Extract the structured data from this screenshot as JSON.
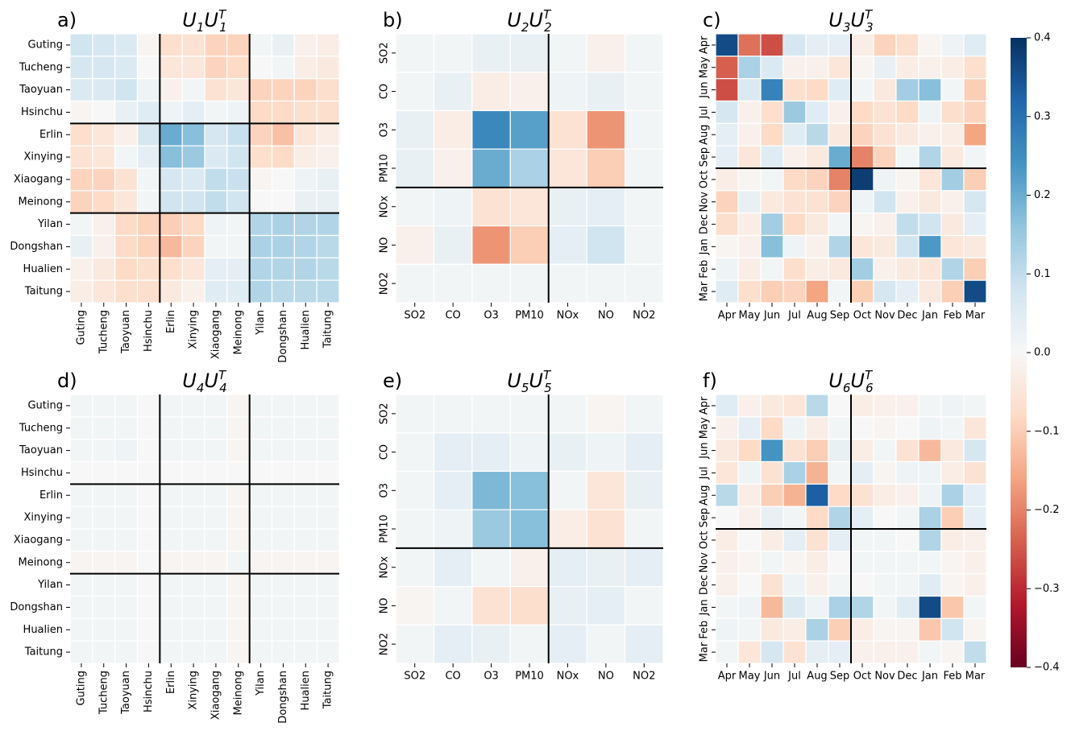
{
  "chart_data": {
    "type": "heatmap",
    "colormap": "RdBu",
    "colorbar": {
      "min": -0.4,
      "max": 0.4,
      "ticks": [
        "0.4",
        "0.3",
        "0.2",
        "0.1",
        "0.0",
        "−0.1",
        "−0.2",
        "−0.3",
        "−0.4"
      ],
      "tick_values": [
        0.4,
        0.3,
        0.2,
        0.1,
        0.0,
        -0.1,
        -0.2,
        -0.3,
        -0.4
      ]
    },
    "panels": [
      {
        "letter": "a)",
        "title_base": "U",
        "title_index": "1",
        "labels": [
          "Guting",
          "Tucheng",
          "Taoyuan",
          "Hsinchu",
          "Erlin",
          "Xinying",
          "Xiaogang",
          "Meinong",
          "Yilan",
          "Dongshan",
          "Hualien",
          "Taitung"
        ],
        "dividers": [
          4,
          8
        ],
        "matrix": [
          [
            0.08,
            0.07,
            0.06,
            -0.01,
            -0.07,
            -0.06,
            -0.09,
            -0.09,
            0.01,
            0.03,
            -0.02,
            -0.03
          ],
          [
            0.07,
            0.07,
            0.06,
            0.0,
            -0.05,
            -0.05,
            -0.09,
            -0.08,
            0.0,
            0.01,
            -0.03,
            -0.04
          ],
          [
            0.06,
            0.06,
            0.08,
            0.02,
            -0.02,
            0.01,
            -0.06,
            -0.05,
            -0.09,
            -0.09,
            -0.09,
            -0.07
          ],
          [
            -0.01,
            0.0,
            0.03,
            0.05,
            0.02,
            0.04,
            0.01,
            0.02,
            -0.08,
            -0.08,
            -0.07,
            -0.07
          ],
          [
            -0.07,
            -0.05,
            -0.02,
            0.07,
            0.2,
            0.17,
            0.07,
            0.09,
            -0.09,
            -0.12,
            -0.05,
            -0.03
          ],
          [
            -0.06,
            -0.05,
            0.01,
            0.04,
            0.17,
            0.15,
            0.06,
            0.08,
            -0.07,
            -0.08,
            -0.03,
            -0.02
          ],
          [
            -0.09,
            -0.09,
            -0.06,
            0.01,
            0.07,
            0.06,
            0.1,
            0.09,
            -0.01,
            0.0,
            0.02,
            0.03
          ],
          [
            -0.09,
            -0.08,
            -0.05,
            0.01,
            0.08,
            0.08,
            0.1,
            0.08,
            0.0,
            0.0,
            0.03,
            0.03
          ],
          [
            0.01,
            -0.02,
            -0.08,
            -0.09,
            -0.1,
            -0.08,
            0.02,
            0.01,
            0.12,
            0.13,
            0.12,
            0.12
          ],
          [
            0.03,
            -0.02,
            -0.08,
            -0.09,
            -0.13,
            -0.09,
            0.01,
            0.01,
            0.13,
            0.13,
            0.12,
            0.11
          ],
          [
            -0.02,
            -0.04,
            -0.08,
            -0.07,
            -0.07,
            -0.05,
            0.04,
            0.04,
            0.12,
            0.12,
            0.12,
            0.11
          ],
          [
            -0.03,
            -0.05,
            -0.07,
            -0.07,
            -0.04,
            -0.02,
            0.05,
            0.05,
            0.12,
            0.11,
            0.11,
            0.11
          ]
        ]
      },
      {
        "letter": "b)",
        "title_base": "U",
        "title_index": "2",
        "labels": [
          "SO2",
          "CO",
          "O3",
          "PM10",
          "NOx",
          "NO",
          "NO2"
        ],
        "dividers": [
          4
        ],
        "matrix": [
          [
            0.01,
            0.01,
            0.03,
            0.03,
            0.01,
            -0.02,
            0.01
          ],
          [
            0.01,
            0.03,
            -0.03,
            -0.02,
            0.02,
            0.03,
            0.01
          ],
          [
            0.03,
            -0.03,
            0.26,
            0.22,
            -0.06,
            -0.18,
            0.01
          ],
          [
            0.03,
            -0.02,
            0.2,
            0.13,
            -0.05,
            -0.1,
            0.01
          ],
          [
            0.01,
            0.02,
            -0.06,
            -0.05,
            0.03,
            0.04,
            0.01
          ],
          [
            -0.02,
            0.03,
            -0.18,
            -0.1,
            0.04,
            0.08,
            0.01
          ],
          [
            0.01,
            0.01,
            0.01,
            0.01,
            0.01,
            0.01,
            0.01
          ]
        ]
      },
      {
        "letter": "c)",
        "title_base": "U",
        "title_index": "3",
        "labels": [
          "Apr",
          "May",
          "Jun",
          "Jul",
          "Aug",
          "Sep",
          "Oct",
          "Nov",
          "Dec",
          "Jan",
          "Feb",
          "Mar"
        ],
        "dividers": [
          6
        ],
        "matrix": [
          [
            0.36,
            -0.22,
            -0.26,
            0.07,
            0.04,
            0.04,
            -0.03,
            -0.09,
            -0.07,
            -0.01,
            0.02,
            0.05
          ],
          [
            -0.24,
            0.13,
            0.06,
            -0.02,
            -0.02,
            -0.05,
            -0.01,
            0.03,
            -0.03,
            -0.02,
            -0.03,
            -0.07
          ],
          [
            -0.26,
            0.06,
            0.27,
            -0.07,
            -0.08,
            0.05,
            0.01,
            -0.04,
            0.14,
            0.17,
            0.01,
            -0.1
          ],
          [
            0.07,
            -0.02,
            -0.07,
            0.15,
            0.05,
            -0.02,
            -0.08,
            -0.06,
            -0.08,
            0.02,
            -0.07,
            -0.09
          ],
          [
            0.04,
            -0.02,
            -0.08,
            0.05,
            0.11,
            -0.04,
            -0.09,
            -0.06,
            -0.04,
            -0.02,
            -0.03,
            -0.16
          ],
          [
            0.04,
            -0.05,
            0.05,
            -0.02,
            -0.04,
            0.2,
            -0.2,
            -0.09,
            0.01,
            0.12,
            -0.04,
            0.01
          ],
          [
            -0.03,
            -0.01,
            0.01,
            -0.08,
            -0.09,
            -0.2,
            0.38,
            0.02,
            -0.01,
            -0.05,
            0.14,
            -0.1
          ],
          [
            -0.09,
            0.03,
            -0.04,
            -0.06,
            -0.06,
            -0.09,
            0.02,
            0.08,
            -0.02,
            -0.04,
            -0.02,
            0.07
          ],
          [
            -0.07,
            -0.03,
            0.14,
            -0.08,
            -0.04,
            0.01,
            -0.01,
            -0.02,
            0.1,
            0.08,
            -0.04,
            0.04
          ],
          [
            -0.01,
            -0.02,
            0.17,
            0.02,
            -0.02,
            0.12,
            -0.05,
            -0.04,
            0.08,
            0.23,
            -0.05,
            -0.04
          ],
          [
            0.02,
            -0.03,
            0.01,
            -0.07,
            -0.03,
            -0.04,
            0.14,
            -0.02,
            -0.04,
            -0.05,
            0.12,
            -0.1
          ],
          [
            0.05,
            -0.07,
            -0.1,
            -0.09,
            -0.16,
            0.01,
            -0.1,
            0.07,
            0.04,
            -0.04,
            -0.1,
            0.36
          ]
        ]
      },
      {
        "letter": "d)",
        "title_base": "U",
        "title_index": "4",
        "labels": [
          "Guting",
          "Tucheng",
          "Taoyuan",
          "Hsinchu",
          "Erlin",
          "Xinying",
          "Xiaogang",
          "Meinong",
          "Yilan",
          "Dongshan",
          "Hualien",
          "Taitung"
        ],
        "dividers": [
          4,
          8
        ],
        "matrix": [
          [
            0.01,
            0.01,
            0.01,
            0.0,
            0.01,
            0.01,
            0.01,
            -0.01,
            0.01,
            0.01,
            0.01,
            0.01
          ],
          [
            0.01,
            0.01,
            0.01,
            0.0,
            0.01,
            0.01,
            0.01,
            -0.01,
            0.01,
            0.01,
            0.01,
            0.01
          ],
          [
            0.01,
            0.01,
            0.02,
            0.0,
            0.01,
            0.01,
            0.01,
            -0.01,
            0.01,
            0.01,
            0.01,
            0.01
          ],
          [
            0.0,
            0.0,
            0.0,
            0.0,
            0.0,
            0.0,
            0.0,
            0.0,
            0.0,
            0.0,
            0.0,
            0.0
          ],
          [
            0.01,
            0.01,
            0.01,
            0.0,
            0.01,
            0.01,
            0.01,
            -0.01,
            0.01,
            0.01,
            0.01,
            0.01
          ],
          [
            0.01,
            0.01,
            0.01,
            0.0,
            0.01,
            0.01,
            0.01,
            -0.01,
            0.01,
            0.01,
            0.01,
            0.01
          ],
          [
            0.01,
            0.01,
            0.01,
            0.0,
            0.01,
            0.01,
            0.01,
            -0.01,
            0.01,
            0.01,
            0.01,
            0.01
          ],
          [
            -0.01,
            -0.01,
            -0.01,
            0.0,
            -0.01,
            -0.01,
            -0.01,
            0.01,
            -0.01,
            -0.01,
            -0.01,
            -0.01
          ],
          [
            0.01,
            0.01,
            0.01,
            0.0,
            0.01,
            0.01,
            0.01,
            -0.01,
            0.01,
            0.01,
            0.01,
            0.01
          ],
          [
            0.01,
            0.01,
            0.01,
            0.0,
            0.01,
            0.01,
            0.01,
            -0.01,
            0.01,
            0.01,
            0.01,
            0.01
          ],
          [
            0.01,
            0.01,
            0.01,
            0.0,
            0.01,
            0.01,
            0.01,
            -0.01,
            0.01,
            0.01,
            0.01,
            0.01
          ],
          [
            0.01,
            0.01,
            0.01,
            0.0,
            0.01,
            0.01,
            0.01,
            -0.01,
            0.01,
            0.01,
            0.01,
            0.01
          ]
        ]
      },
      {
        "letter": "e)",
        "title_base": "U",
        "title_index": "5",
        "labels": [
          "SO2",
          "CO",
          "O3",
          "PM10",
          "NOx",
          "NO",
          "NO2"
        ],
        "dividers": [
          4
        ],
        "matrix": [
          [
            0.01,
            0.01,
            0.01,
            0.01,
            0.01,
            -0.01,
            0.01
          ],
          [
            0.01,
            0.04,
            0.04,
            0.02,
            0.03,
            0.02,
            0.04
          ],
          [
            0.01,
            0.04,
            0.18,
            0.17,
            0.01,
            -0.05,
            0.03
          ],
          [
            0.01,
            0.02,
            0.15,
            0.17,
            -0.03,
            -0.06,
            0.01
          ],
          [
            0.01,
            0.04,
            0.01,
            -0.02,
            0.04,
            0.03,
            0.04
          ],
          [
            -0.01,
            0.01,
            -0.06,
            -0.07,
            0.03,
            0.04,
            0.01
          ],
          [
            0.01,
            0.04,
            0.03,
            0.01,
            0.04,
            0.01,
            0.04
          ]
        ]
      },
      {
        "letter": "f)",
        "title_base": "U",
        "title_index": "6",
        "labels": [
          "Apr",
          "May",
          "Jun",
          "Jul",
          "Aug",
          "Sep",
          "Oct",
          "Nov",
          "Dec",
          "Jan",
          "Feb",
          "Mar"
        ],
        "dividers": [
          6
        ],
        "matrix": [
          [
            0.05,
            -0.02,
            -0.04,
            -0.05,
            0.11,
            0.0,
            -0.03,
            -0.02,
            -0.02,
            0.01,
            0.02,
            0.01
          ],
          [
            -0.02,
            0.04,
            -0.08,
            0.02,
            -0.03,
            0.01,
            0.0,
            -0.01,
            0.0,
            0.02,
            0.01,
            -0.05
          ],
          [
            -0.04,
            -0.08,
            0.24,
            -0.06,
            -0.1,
            0.03,
            -0.03,
            0.01,
            -0.06,
            -0.13,
            -0.04,
            0.07
          ],
          [
            -0.05,
            0.02,
            -0.06,
            0.13,
            -0.14,
            0.01,
            0.04,
            -0.01,
            0.02,
            0.02,
            -0.03,
            -0.06
          ],
          [
            0.11,
            -0.03,
            -0.1,
            -0.14,
            0.33,
            -0.08,
            -0.06,
            -0.03,
            -0.02,
            0.02,
            0.13,
            0.04
          ],
          [
            0.0,
            -0.02,
            0.03,
            0.01,
            -0.08,
            0.12,
            0.04,
            0.0,
            0.01,
            0.13,
            -0.1,
            0.04
          ],
          [
            -0.03,
            0.0,
            -0.03,
            0.04,
            -0.06,
            0.04,
            0.01,
            0.01,
            0.0,
            0.12,
            -0.03,
            -0.02
          ],
          [
            -0.02,
            -0.01,
            0.01,
            -0.01,
            -0.03,
            0.0,
            0.01,
            0.01,
            0.01,
            0.01,
            -0.01,
            -0.02
          ],
          [
            -0.02,
            0.0,
            -0.06,
            0.02,
            -0.02,
            0.01,
            0.0,
            0.01,
            0.01,
            0.05,
            -0.01,
            -0.02
          ],
          [
            0.01,
            0.02,
            -0.13,
            0.06,
            0.02,
            0.13,
            0.12,
            0.01,
            0.05,
            0.36,
            -0.11,
            0.01
          ],
          [
            0.02,
            0.01,
            -0.04,
            -0.03,
            0.13,
            -0.1,
            -0.03,
            -0.01,
            -0.01,
            -0.11,
            0.08,
            -0.01
          ],
          [
            0.01,
            -0.05,
            0.07,
            -0.06,
            0.04,
            0.04,
            -0.02,
            -0.02,
            -0.02,
            0.01,
            -0.01,
            0.1
          ]
        ]
      }
    ]
  }
}
